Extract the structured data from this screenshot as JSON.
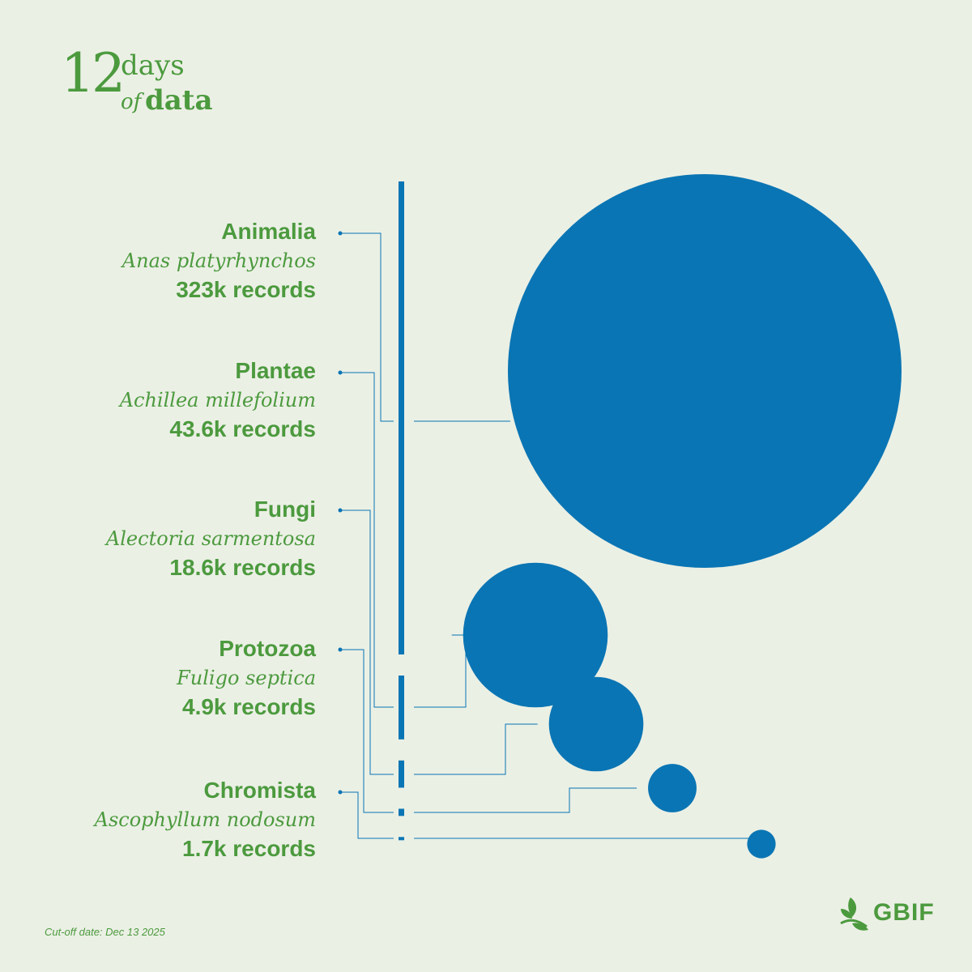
{
  "brand": {
    "number": "12",
    "days": "days",
    "of": "of",
    "data": "data"
  },
  "chart_data": {
    "type": "bubble",
    "title": "",
    "entries": [
      {
        "kingdom": "Animalia",
        "species": "Anas platyrhynchos",
        "records_label": "323k records",
        "value": 323000
      },
      {
        "kingdom": "Plantae",
        "species": "Achillea millefolium",
        "records_label": "43.6k records",
        "value": 43600
      },
      {
        "kingdom": "Fungi",
        "species": "Alectoria sarmentosa",
        "records_label": "18.6k records",
        "value": 18600
      },
      {
        "kingdom": "Protozoa",
        "species": "Fuligo septica",
        "records_label": "4.9k records",
        "value": 4900
      },
      {
        "kingdom": "Chromista",
        "species": "Ascophyllum nodosum",
        "records_label": "1.7k records",
        "value": 1700
      }
    ]
  },
  "colors": {
    "green": "#4c9a3e",
    "blue": "#0a75b4",
    "background": "#ebf0e5"
  },
  "footer": {
    "cutoff": "Cut-off date: Dec 13 2025"
  },
  "logo": {
    "text": "GBIF",
    "icon": "leaf-icon"
  }
}
